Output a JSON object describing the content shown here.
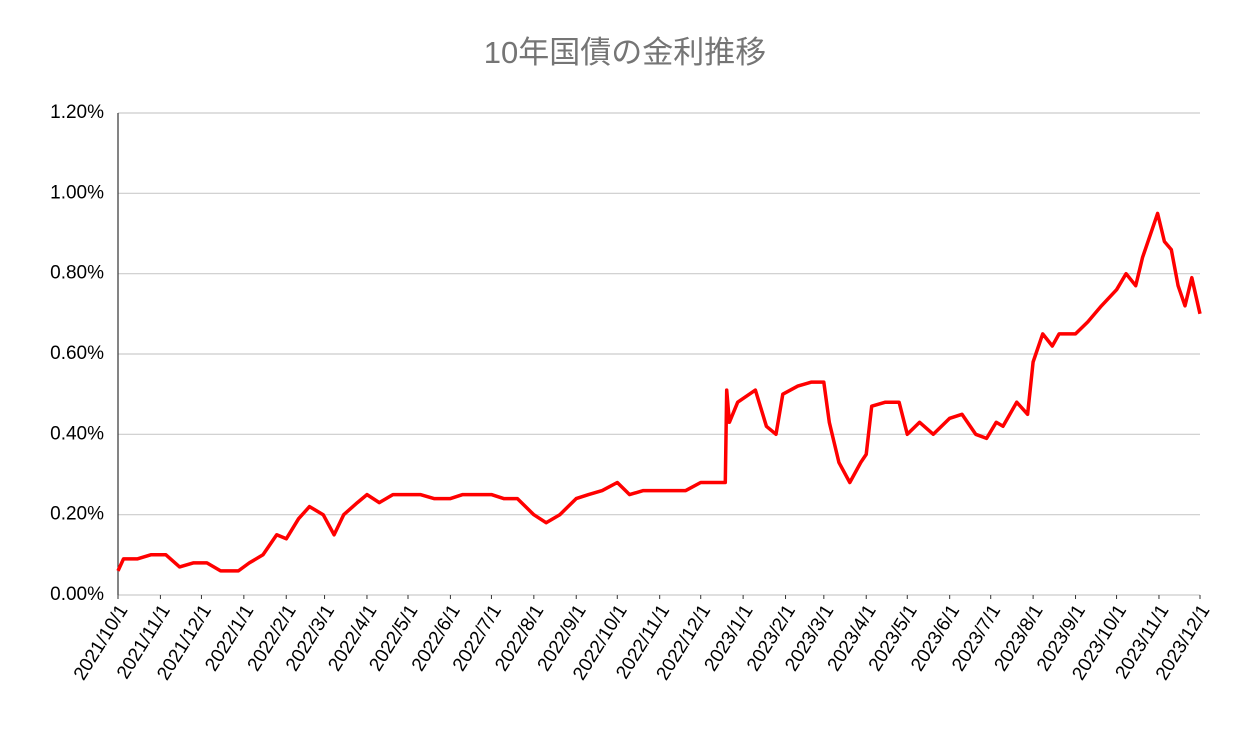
{
  "chart_data": {
    "type": "line",
    "title": "10年国債の金利推移",
    "x": [
      "2021/10/1",
      "2021/10/5",
      "2021/10/15",
      "2021/10/25",
      "2021/11/5",
      "2021/11/15",
      "2021/11/25",
      "2021/12/5",
      "2021/12/15",
      "2021/12/28",
      "2022/1/5",
      "2022/1/15",
      "2022/1/25",
      "2022/2/1",
      "2022/2/10",
      "2022/2/18",
      "2022/2/28",
      "2022/3/8",
      "2022/3/15",
      "2022/3/25",
      "2022/4/1",
      "2022/4/10",
      "2022/4/20",
      "2022/5/1",
      "2022/5/10",
      "2022/5/20",
      "2022/6/1",
      "2022/6/10",
      "2022/6/20",
      "2022/7/1",
      "2022/7/10",
      "2022/7/20",
      "2022/8/1",
      "2022/8/10",
      "2022/8/20",
      "2022/9/1",
      "2022/9/10",
      "2022/9/20",
      "2022/10/1",
      "2022/10/10",
      "2022/10/20",
      "2022/11/1",
      "2022/11/10",
      "2022/11/20",
      "2022/12/1",
      "2022/12/19",
      "2022/12/20",
      "2022/12/22",
      "2022/12/28",
      "2023/1/10",
      "2023/1/18",
      "2023/1/25",
      "2023/1/30",
      "2023/2/10",
      "2023/2/20",
      "2023/3/1",
      "2023/3/5",
      "2023/3/12",
      "2023/3/20",
      "2023/3/28",
      "2023/4/1",
      "2023/4/5",
      "2023/4/15",
      "2023/4/25",
      "2023/5/1",
      "2023/5/10",
      "2023/5/20",
      "2023/6/1",
      "2023/6/10",
      "2023/6/20",
      "2023/6/28",
      "2023/7/5",
      "2023/7/10",
      "2023/7/20",
      "2023/7/28",
      "2023/8/1",
      "2023/8/8",
      "2023/8/15",
      "2023/8/20",
      "2023/9/1",
      "2023/9/10",
      "2023/9/20",
      "2023/10/1",
      "2023/10/8",
      "2023/10/15",
      "2023/10/20",
      "2023/10/31",
      "2023/11/5",
      "2023/11/10",
      "2023/11/15",
      "2023/11/20",
      "2023/11/25",
      "2023/12/1"
    ],
    "series": [
      {
        "color": "#ff0000",
        "values": [
          0.06,
          0.09,
          0.09,
          0.1,
          0.1,
          0.07,
          0.08,
          0.08,
          0.06,
          0.06,
          0.08,
          0.1,
          0.15,
          0.14,
          0.19,
          0.22,
          0.2,
          0.15,
          0.2,
          0.23,
          0.25,
          0.23,
          0.25,
          0.25,
          0.25,
          0.24,
          0.24,
          0.25,
          0.25,
          0.25,
          0.24,
          0.24,
          0.2,
          0.18,
          0.2,
          0.24,
          0.25,
          0.26,
          0.28,
          0.25,
          0.26,
          0.26,
          0.26,
          0.26,
          0.28,
          0.28,
          0.51,
          0.43,
          0.48,
          0.51,
          0.42,
          0.4,
          0.5,
          0.52,
          0.53,
          0.53,
          0.43,
          0.33,
          0.28,
          0.33,
          0.35,
          0.47,
          0.48,
          0.48,
          0.4,
          0.43,
          0.4,
          0.44,
          0.45,
          0.4,
          0.39,
          0.43,
          0.42,
          0.48,
          0.45,
          0.58,
          0.65,
          0.62,
          0.65,
          0.65,
          0.68,
          0.72,
          0.76,
          0.8,
          0.77,
          0.84,
          0.95,
          0.88,
          0.86,
          0.77,
          0.72,
          0.79,
          0.7
        ]
      }
    ],
    "xlim": [
      "2021/10/1",
      "2023/12/1"
    ],
    "xticks": [
      "2021/10/1",
      "2021/11/1",
      "2021/12/1",
      "2022/1/1",
      "2022/2/1",
      "2022/3/1",
      "2022/4/1",
      "2022/5/1",
      "2022/6/1",
      "2022/7/1",
      "2022/8/1",
      "2022/9/1",
      "2022/10/1",
      "2022/11/1",
      "2022/12/1",
      "2023/1/1",
      "2023/2/1",
      "2023/3/1",
      "2023/4/1",
      "2023/5/1",
      "2023/6/1",
      "2023/7/1",
      "2023/8/1",
      "2023/9/1",
      "2023/10/1",
      "2023/11/1",
      "2023/12/1"
    ],
    "ylim": [
      0,
      1.2
    ],
    "yticks": [
      {
        "value": 0,
        "label": "0.00%"
      },
      {
        "value": 0.2,
        "label": "0.20%"
      },
      {
        "value": 0.4,
        "label": "0.40%"
      },
      {
        "value": 0.6,
        "label": "0.60%"
      },
      {
        "value": 0.8,
        "label": "0.80%"
      },
      {
        "value": 1.0,
        "label": "1.00%"
      },
      {
        "value": 1.2,
        "label": "1.20%"
      }
    ],
    "grid": true
  }
}
